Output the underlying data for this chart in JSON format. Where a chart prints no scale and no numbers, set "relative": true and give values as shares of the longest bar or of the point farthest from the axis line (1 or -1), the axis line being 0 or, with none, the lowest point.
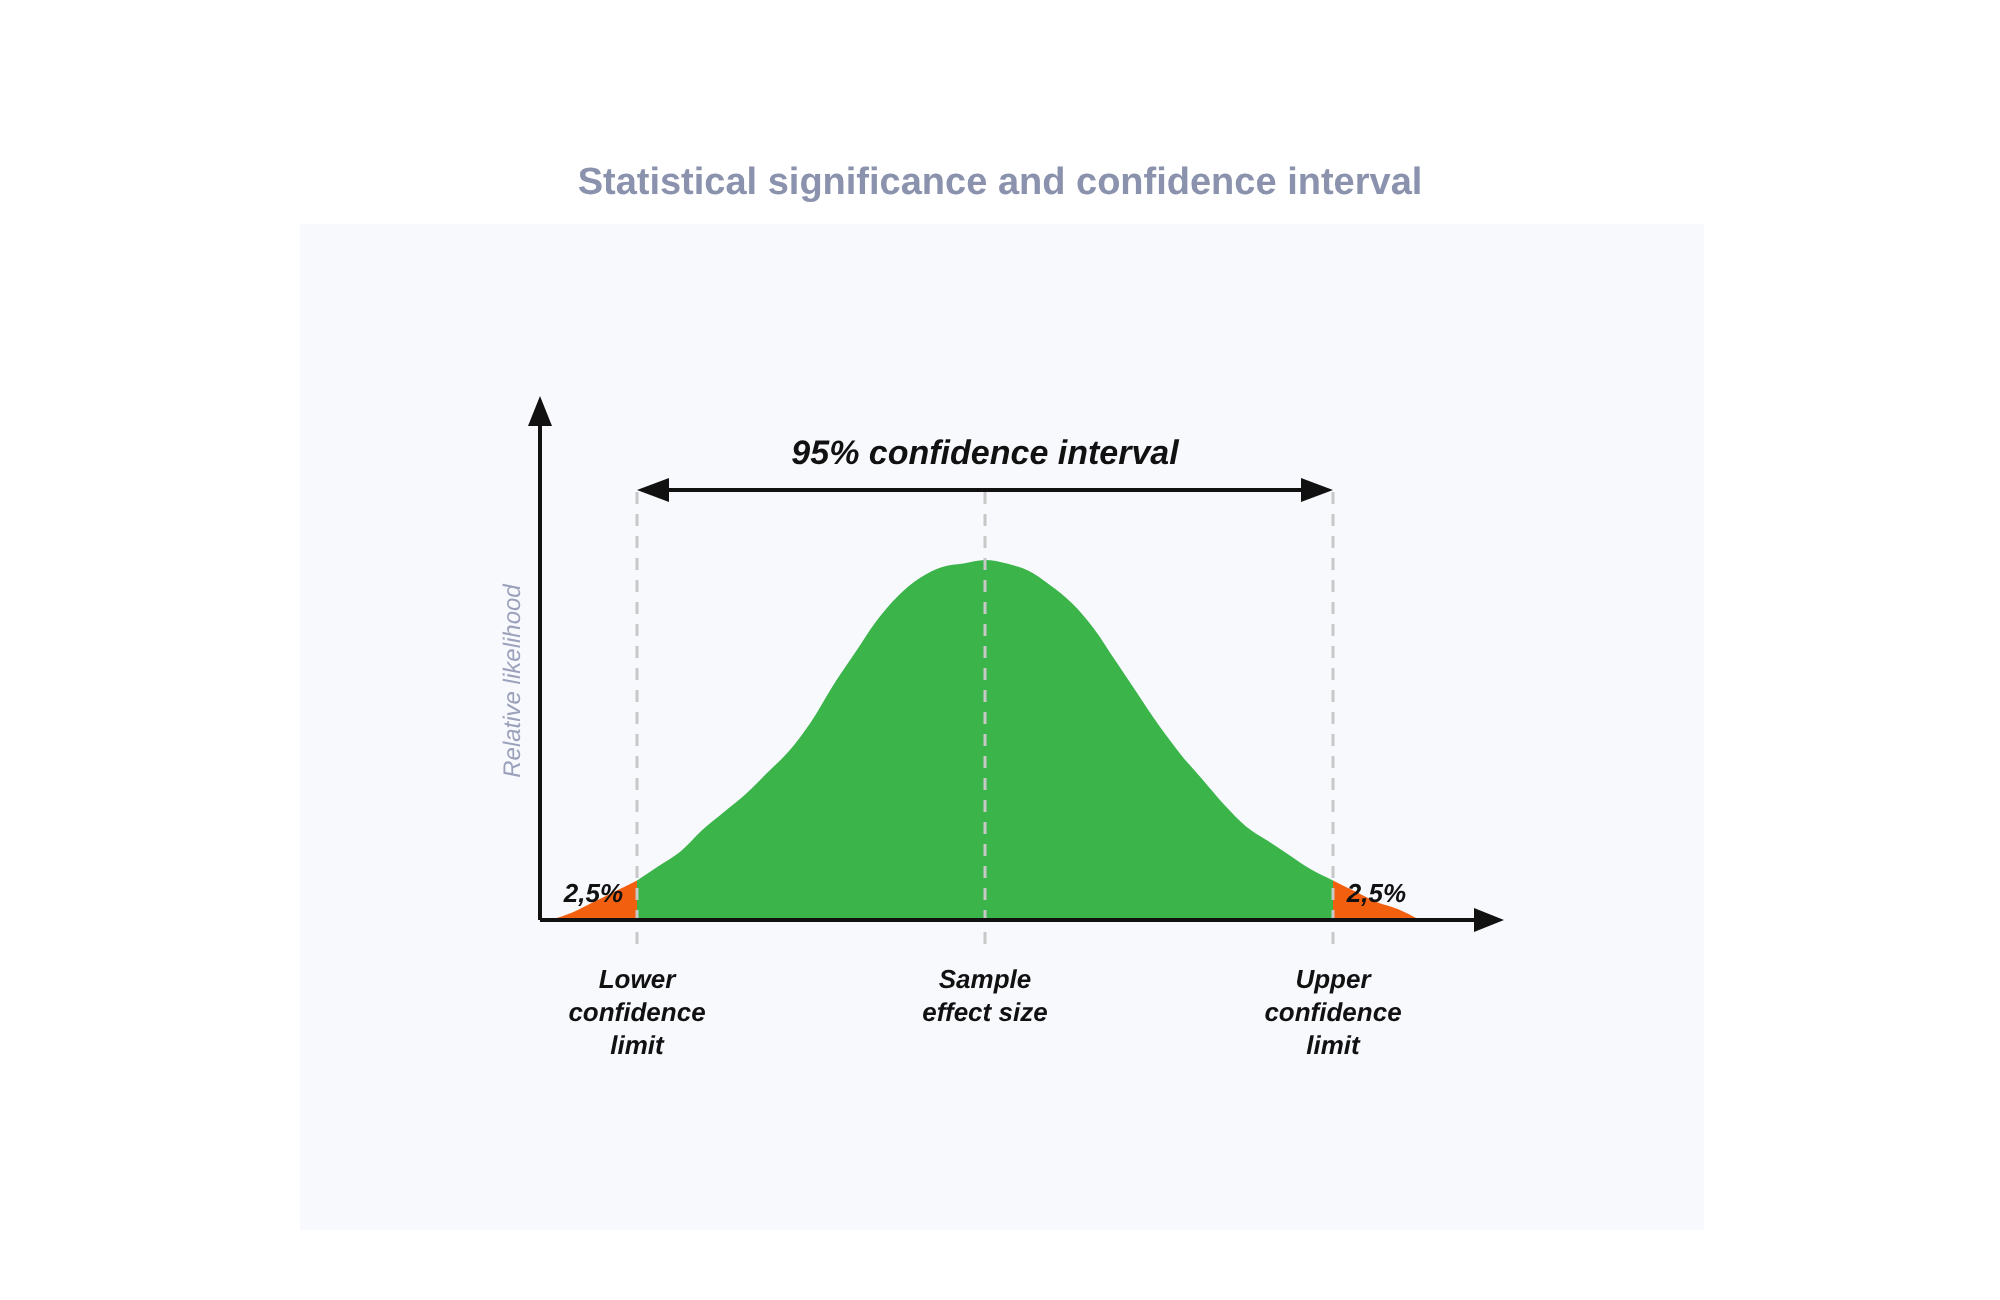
{
  "chart_data": {
    "type": "area",
    "title": "Statistical significance and confidence interval",
    "ylabel": "Relative likelihood",
    "relative": true,
    "categories": [
      null,
      null,
      null,
      null,
      "Lower confidence limit",
      null,
      null,
      null,
      null,
      null,
      null,
      null,
      null,
      null,
      null,
      null,
      null,
      null,
      null,
      null,
      "Sample effect size",
      null,
      null,
      null,
      null,
      null,
      null,
      null,
      null,
      null,
      null,
      null,
      null,
      null,
      null,
      null,
      "Upper confidence limit",
      null,
      null,
      null,
      null
    ],
    "series": [
      {
        "color": "#f2600f",
        "values": [
          0,
          0.02,
          0.05,
          0.08,
          0.11,
          null,
          null,
          null,
          null,
          null,
          null,
          null,
          null,
          null,
          null,
          null,
          null,
          null,
          null,
          null,
          null,
          null,
          null,
          null,
          null,
          null,
          null,
          null,
          null,
          null,
          null,
          null,
          null,
          null,
          null,
          null,
          null,
          null,
          null,
          null,
          null
        ]
      },
      {
        "color": "#3bb44a",
        "values": [
          null,
          null,
          null,
          null,
          0.11,
          0.15,
          0.19,
          0.25,
          0.3,
          0.35,
          0.41,
          0.47,
          0.55,
          0.65,
          0.74,
          0.83,
          0.9,
          0.95,
          0.98,
          0.99,
          1,
          0.99,
          0.97,
          0.93,
          0.88,
          0.81,
          0.72,
          0.63,
          0.54,
          0.46,
          0.39,
          0.32,
          0.26,
          0.22,
          0.18,
          0.14,
          0.11,
          null,
          null,
          null,
          null
        ]
      },
      {
        "color": "#f2600f",
        "values": [
          null,
          null,
          null,
          null,
          null,
          null,
          null,
          null,
          null,
          null,
          null,
          null,
          null,
          null,
          null,
          null,
          null,
          null,
          null,
          null,
          null,
          null,
          null,
          null,
          null,
          null,
          null,
          null,
          null,
          null,
          null,
          null,
          null,
          null,
          null,
          null,
          0.11,
          0.08,
          0.05,
          0.03,
          0
        ]
      }
    ],
    "ref_lines": [
      {
        "axis": "x",
        "value": "Lower confidence limit",
        "color": "#c8c8c8",
        "line_style": "dashed"
      },
      {
        "axis": "x",
        "value": "Sample effect size",
        "color": "#c8c8c8",
        "line_style": "dashed"
      },
      {
        "axis": "x",
        "value": "Upper confidence limit",
        "color": "#c8c8c8",
        "line_style": "dashed"
      }
    ],
    "annotations": [
      "95% confidence interval",
      "2,5%",
      "2,5%"
    ]
  }
}
